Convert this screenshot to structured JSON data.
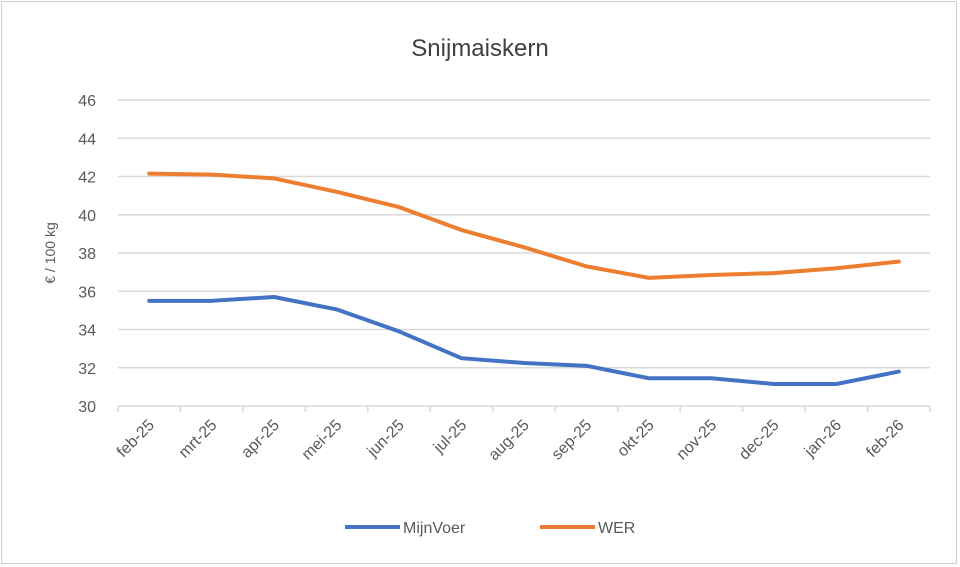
{
  "chart_data": {
    "type": "line",
    "title": "Snijmaiskern",
    "xlabel": "",
    "ylabel": "€ / 100 kg",
    "ylim": [
      30,
      46
    ],
    "yticks": [
      "30",
      "32",
      "34",
      "36",
      "38",
      "40",
      "42",
      "44",
      "46"
    ],
    "grid": true,
    "legend_position": "bottom",
    "categories": [
      "feb-25",
      "mrt-25",
      "apr-25",
      "mei-25",
      "jun-25",
      "jul-25",
      "aug-25",
      "sep-25",
      "okt-25",
      "nov-25",
      "dec-25",
      "jan-26",
      "feb-26"
    ],
    "series": [
      {
        "name": "MijnVoer",
        "color": "#4472C4",
        "values": [
          35.5,
          35.5,
          35.7,
          35.05,
          33.9,
          32.5,
          32.25,
          32.1,
          31.45,
          31.45,
          31.15,
          31.15,
          31.8
        ]
      },
      {
        "name": "WER",
        "color": "#ED7D31",
        "values": [
          42.15,
          42.1,
          41.9,
          41.2,
          40.4,
          39.2,
          38.3,
          37.3,
          36.7,
          36.85,
          36.95,
          37.2,
          37.55
        ]
      }
    ]
  }
}
